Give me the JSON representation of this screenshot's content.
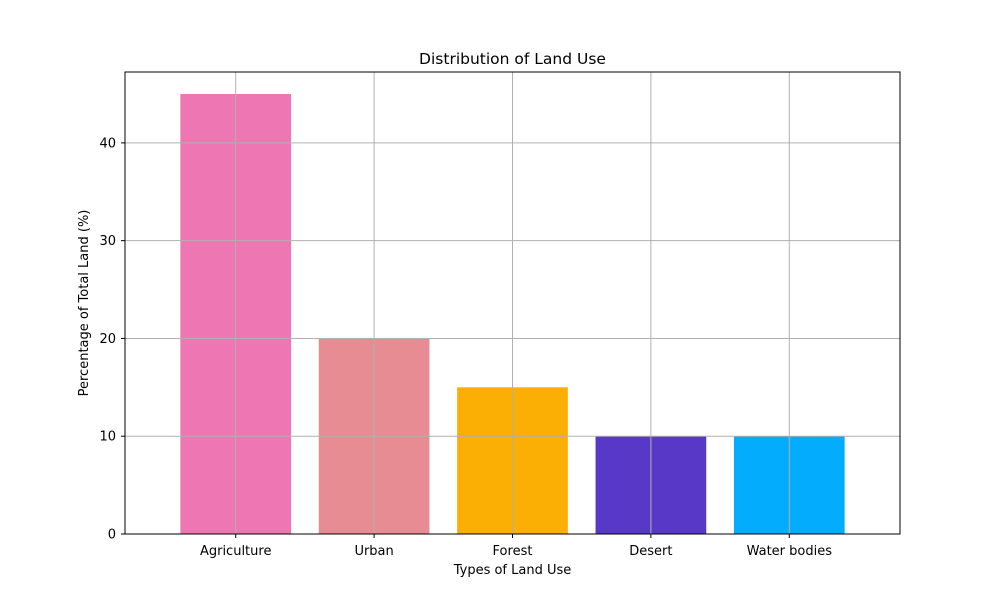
{
  "chart_data": {
    "type": "bar",
    "title": "Distribution of Land Use",
    "xlabel": "Types of Land Use",
    "ylabel": "Percentage of Total Land (%)",
    "categories": [
      "Agriculture",
      "Urban",
      "Forest",
      "Desert",
      "Water bodies"
    ],
    "values": [
      45,
      20,
      15,
      10,
      10
    ],
    "colors": [
      "#ee77b3",
      "#e78c93",
      "#fbae03",
      "#5838c7",
      "#03acfc"
    ],
    "yticks": [
      0,
      10,
      20,
      30,
      40
    ],
    "ylim": [
      0,
      47.25
    ],
    "grid": true
  }
}
